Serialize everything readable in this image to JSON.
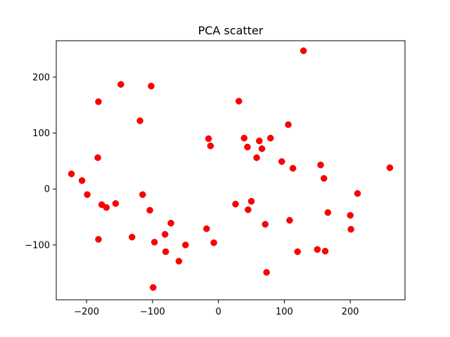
{
  "chart_data": {
    "type": "scatter",
    "title": "PCA scatter",
    "xlabel": "",
    "ylabel": "",
    "xlim": [
      -246,
      283
    ],
    "ylim": [
      -198,
      265
    ],
    "xticks": [
      -200,
      -100,
      0,
      100,
      200
    ],
    "yticks": [
      -100,
      0,
      100,
      200
    ],
    "xtick_labels": [
      "−200",
      "−100",
      "0",
      "100",
      "200"
    ],
    "ytick_labels": [
      "−100",
      "0",
      "100",
      "200"
    ],
    "grid": false,
    "marker_color": "#ff0000",
    "marker_edge_color": "#d00000",
    "points": [
      [
        -223,
        27
      ],
      [
        -207,
        15
      ],
      [
        -199,
        -10
      ],
      [
        -183,
        56
      ],
      [
        -182,
        156
      ],
      [
        -182,
        -90
      ],
      [
        -177,
        -28
      ],
      [
        -170,
        -33
      ],
      [
        -156,
        -26
      ],
      [
        -148,
        187
      ],
      [
        -131,
        -86
      ],
      [
        -119,
        122
      ],
      [
        -115,
        -10
      ],
      [
        -104,
        -38
      ],
      [
        -102,
        184
      ],
      [
        -99,
        -176
      ],
      [
        -97,
        -95
      ],
      [
        -81,
        -81
      ],
      [
        -80,
        -112
      ],
      [
        -72,
        -61
      ],
      [
        -60,
        -129
      ],
      [
        -50,
        -100
      ],
      [
        -18,
        -71
      ],
      [
        -15,
        90
      ],
      [
        -12,
        77
      ],
      [
        -7,
        -96
      ],
      [
        26,
        -27
      ],
      [
        31,
        157
      ],
      [
        39,
        91
      ],
      [
        44,
        75
      ],
      [
        45,
        -37
      ],
      [
        50,
        -22
      ],
      [
        58,
        56
      ],
      [
        62,
        86
      ],
      [
        66,
        72
      ],
      [
        71,
        -63
      ],
      [
        73,
        -149
      ],
      [
        79,
        91
      ],
      [
        96,
        49
      ],
      [
        106,
        115
      ],
      [
        108,
        -56
      ],
      [
        113,
        37
      ],
      [
        120,
        -112
      ],
      [
        150,
        -108
      ],
      [
        155,
        43
      ],
      [
        160,
        19
      ],
      [
        162,
        -111
      ],
      [
        166,
        -42
      ],
      [
        200,
        -47
      ],
      [
        201,
        -72
      ],
      [
        211,
        -8
      ],
      [
        260,
        38
      ],
      [
        129,
        247
      ]
    ]
  }
}
